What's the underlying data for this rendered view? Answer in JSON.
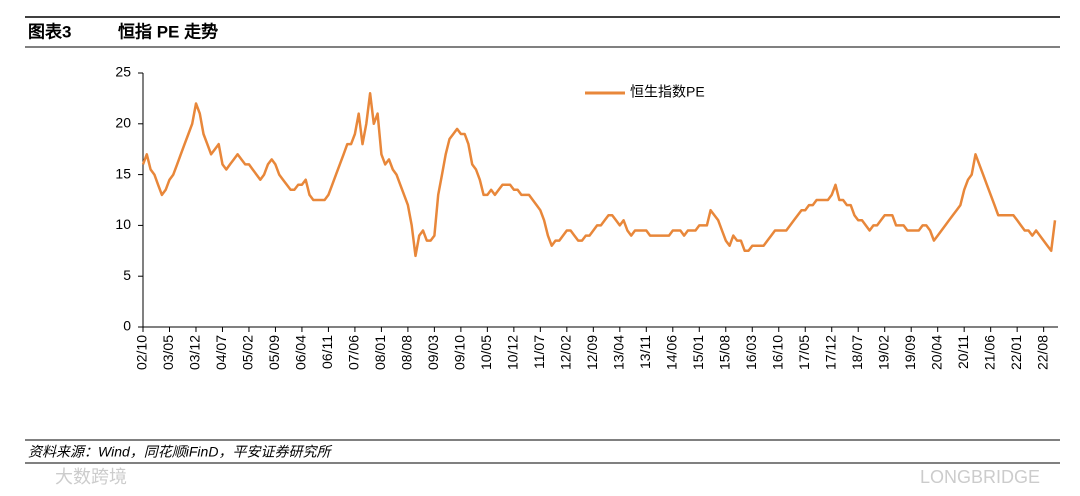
{
  "header": {
    "label": "图表3",
    "title": "恒指 PE 走势"
  },
  "chart_data": {
    "type": "line",
    "categories": [
      "02/10",
      null,
      null,
      null,
      null,
      null,
      null,
      "03/05",
      null,
      null,
      null,
      null,
      null,
      null,
      "03/12",
      null,
      null,
      null,
      null,
      null,
      null,
      "04/07",
      null,
      null,
      null,
      null,
      null,
      null,
      "05/02",
      null,
      null,
      null,
      null,
      null,
      null,
      "05/09",
      null,
      null,
      null,
      null,
      null,
      null,
      "06/04",
      null,
      null,
      null,
      null,
      null,
      null,
      "06/11",
      null,
      null,
      null,
      null,
      null,
      null,
      "07/06",
      null,
      null,
      null,
      null,
      null,
      null,
      "08/01",
      null,
      null,
      null,
      null,
      null,
      null,
      "08/08",
      null,
      null,
      null,
      null,
      null,
      null,
      "09/03",
      null,
      null,
      null,
      null,
      null,
      null,
      "09/10",
      null,
      null,
      null,
      null,
      null,
      null,
      "10/05",
      null,
      null,
      null,
      null,
      null,
      null,
      "10/12",
      null,
      null,
      null,
      null,
      null,
      null,
      "11/07",
      null,
      null,
      null,
      null,
      null,
      null,
      "12/02",
      null,
      null,
      null,
      null,
      null,
      null,
      "12/09",
      null,
      null,
      null,
      null,
      null,
      null,
      "13/04",
      null,
      null,
      null,
      null,
      null,
      null,
      "13/11",
      null,
      null,
      null,
      null,
      null,
      null,
      "14/06",
      null,
      null,
      null,
      null,
      null,
      null,
      "15/01",
      null,
      null,
      null,
      null,
      null,
      null,
      "15/08",
      null,
      null,
      null,
      null,
      null,
      null,
      "16/03",
      null,
      null,
      null,
      null,
      null,
      null,
      "16/10",
      null,
      null,
      null,
      null,
      null,
      null,
      "17/05",
      null,
      null,
      null,
      null,
      null,
      null,
      "17/12",
      null,
      null,
      null,
      null,
      null,
      null,
      "18/07",
      null,
      null,
      null,
      null,
      null,
      null,
      "19/02",
      null,
      null,
      null,
      null,
      null,
      null,
      "19/09",
      null,
      null,
      null,
      null,
      null,
      null,
      "20/04",
      null,
      null,
      null,
      null,
      null,
      null,
      "20/11",
      null,
      null,
      null,
      null,
      null,
      null,
      "21/06",
      null,
      null,
      null,
      null,
      null,
      null,
      "22/01",
      null,
      null,
      null,
      null,
      null,
      null,
      "22/08",
      null,
      null,
      null
    ],
    "series": [
      {
        "name": "恒生指数PE",
        "color": "#e8873a",
        "values": [
          16,
          17,
          15.5,
          15,
          14,
          13,
          13.5,
          14.5,
          15,
          16,
          17,
          18,
          19,
          20,
          22,
          21,
          19,
          18,
          17,
          17.5,
          18,
          16,
          15.5,
          16,
          16.5,
          17,
          16.5,
          16,
          16,
          15.5,
          15,
          14.5,
          15,
          16,
          16.5,
          16,
          15,
          14.5,
          14,
          13.5,
          13.5,
          14,
          14,
          14.5,
          13,
          12.5,
          12.5,
          12.5,
          12.5,
          13,
          14,
          15,
          16,
          17,
          18,
          18,
          19,
          21,
          18,
          20,
          23,
          20,
          21,
          17,
          16,
          16.5,
          15.5,
          15,
          14,
          13,
          12,
          10,
          7,
          9,
          9.5,
          8.5,
          8.5,
          9,
          13,
          15,
          17,
          18.5,
          19,
          19.5,
          19,
          19,
          18,
          16,
          15.5,
          14.5,
          13,
          13,
          13.5,
          13,
          13.5,
          14,
          14,
          14,
          13.5,
          13.5,
          13,
          13,
          13,
          12.5,
          12,
          11.5,
          10.5,
          9,
          8,
          8.5,
          8.5,
          9,
          9.5,
          9.5,
          9,
          8.5,
          8.5,
          9,
          9,
          9.5,
          10,
          10,
          10.5,
          11,
          11,
          10.5,
          10,
          10.5,
          9.5,
          9,
          9.5,
          9.5,
          9.5,
          9.5,
          9,
          9,
          9,
          9,
          9,
          9,
          9.5,
          9.5,
          9.5,
          9,
          9.5,
          9.5,
          9.5,
          10,
          10,
          10,
          11.5,
          11,
          10.5,
          9.5,
          8.5,
          8,
          9,
          8.5,
          8.5,
          7.5,
          7.5,
          8,
          8,
          8,
          8,
          8.5,
          9,
          9.5,
          9.5,
          9.5,
          9.5,
          10,
          10.5,
          11,
          11.5,
          11.5,
          12,
          12,
          12.5,
          12.5,
          12.5,
          12.5,
          13,
          14,
          12.5,
          12.5,
          12,
          12,
          11,
          10.5,
          10.5,
          10,
          9.5,
          10,
          10,
          10.5,
          11,
          11,
          11,
          10,
          10,
          10,
          9.5,
          9.5,
          9.5,
          9.5,
          10,
          10,
          9.5,
          8.5,
          9,
          9.5,
          10,
          10.5,
          11,
          11.5,
          12,
          13.5,
          14.5,
          15,
          17,
          16,
          15,
          14,
          13,
          12,
          11,
          11,
          11,
          11,
          11,
          10.5,
          10,
          9.5,
          9.5,
          9,
          9.5,
          9,
          8.5,
          8,
          7.5,
          10.5
        ]
      }
    ],
    "ylim": [
      0,
      25
    ],
    "yticks": [
      0,
      5,
      10,
      15,
      20,
      25
    ],
    "grid": false,
    "legend": "top"
  },
  "footer": {
    "source": "资料来源：Wind，同花顺iFinD，平安证券研究所"
  },
  "watermarks": [
    "大数跨境",
    "LONGBRIDGE"
  ]
}
